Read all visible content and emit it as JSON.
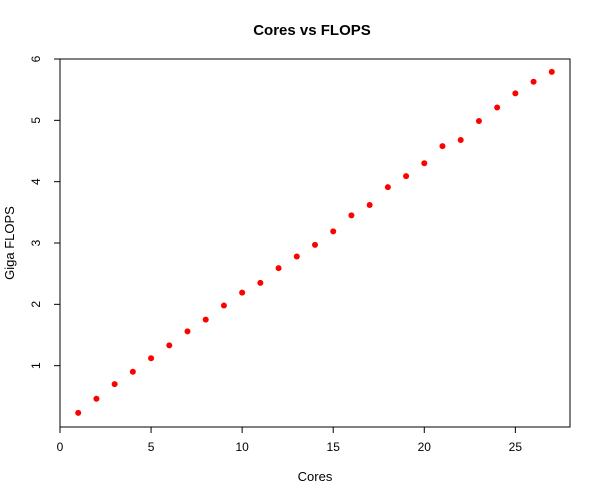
{
  "chart_data": {
    "type": "scatter",
    "title": "Cores vs FLOPS",
    "xlabel": "Cores",
    "ylabel": "Giga FLOPS",
    "xlim": [
      0,
      28
    ],
    "ylim": [
      0,
      6
    ],
    "xticks": [
      0,
      5,
      10,
      15,
      20,
      25
    ],
    "yticks": [
      1,
      2,
      3,
      4,
      5,
      6
    ],
    "grid": false,
    "colors": {
      "points": "#ff0000",
      "axes": "#000000"
    },
    "series": [
      {
        "x": [
          1,
          2,
          3,
          4,
          5,
          6,
          7,
          8,
          9,
          10,
          11,
          12,
          13,
          14,
          15,
          16,
          17,
          18,
          19,
          20,
          21,
          22,
          23,
          24,
          25,
          26,
          27
        ],
        "y": [
          0.23,
          0.46,
          0.7,
          0.9,
          1.12,
          1.33,
          1.56,
          1.75,
          1.98,
          2.19,
          2.35,
          2.59,
          2.78,
          2.97,
          3.19,
          3.45,
          3.62,
          3.91,
          4.09,
          4.3,
          4.58,
          4.68,
          4.99,
          5.21,
          5.44,
          5.63,
          5.79
        ]
      }
    ]
  }
}
